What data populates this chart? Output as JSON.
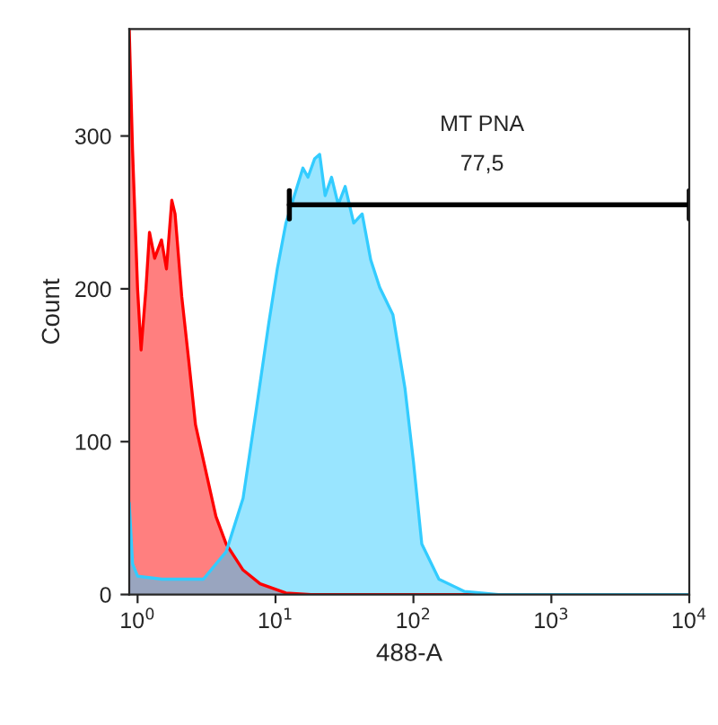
{
  "chart_data": {
    "type": "area",
    "xlabel": "488-A",
    "ylabel": "Count",
    "log": "x",
    "xlim": [
      0.87,
      10000
    ],
    "ylim": [
      0,
      370
    ],
    "xticks": [
      {
        "value": 1,
        "label": "10$^{0}$"
      },
      {
        "value": 10,
        "label": "10$^{1}$"
      },
      {
        "value": 100,
        "label": "10$^{2}$"
      },
      {
        "value": 1000,
        "label": "10$^{3}$"
      },
      {
        "value": 10000,
        "label": "10$^{4}$"
      }
    ],
    "yticks": [
      0,
      100,
      200,
      300
    ],
    "grid": false,
    "series": [
      {
        "color": "#ff0000",
        "x": [
          0.87,
          0.92,
          1.0,
          1.06,
          1.15,
          1.22,
          1.33,
          1.49,
          1.62,
          1.77,
          1.87,
          2.09,
          2.35,
          2.63,
          3.12,
          3.7,
          4.39,
          5.82,
          7.74,
          11.9,
          18.1,
          10000
        ],
        "values": [
          370,
          290,
          200,
          160,
          200,
          237,
          220,
          232,
          213,
          258,
          249,
          195,
          153,
          111,
          81,
          51,
          33,
          16,
          7,
          1,
          0,
          0
        ]
      },
      {
        "color": "#33ccff",
        "x": [
          0.87,
          0.92,
          1.0,
          1.5,
          3.0,
          4.39,
          5.82,
          7.31,
          8.92,
          10.3,
          11.9,
          13.7,
          15.8,
          17.2,
          19.2,
          20.9,
          22.9,
          25.5,
          28.5,
          32.0,
          36.9,
          42.5,
          49.0,
          56.9,
          71.0,
          86.8,
          100,
          115,
          153,
          235,
          414,
          10000
        ],
        "values": [
          60,
          20,
          12,
          10,
          10,
          28,
          63,
          123,
          177,
          213,
          243,
          261,
          279,
          273,
          285,
          288,
          261,
          273,
          255,
          267,
          243,
          249,
          219,
          201,
          183,
          135,
          87,
          33,
          10,
          2,
          0,
          0
        ]
      },
      {
        "type": "line",
        "color": "#000000",
        "x": [
          12.6,
          10000
        ],
        "values": [
          255,
          255
        ]
      }
    ],
    "annotations": [
      "MT PNA",
      "77,5"
    ]
  }
}
